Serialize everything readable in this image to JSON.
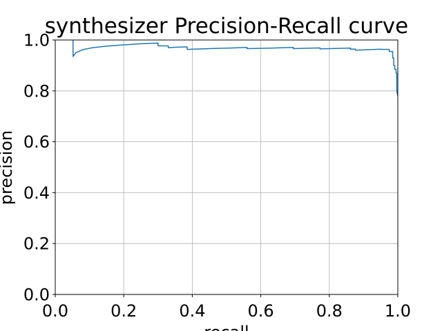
{
  "chart_data": {
    "type": "line",
    "title": "synthesizer Precision-Recall curve",
    "xlabel": "recall",
    "ylabel": "precision",
    "xlim": [
      0.0,
      1.0
    ],
    "ylim": [
      0.0,
      1.0
    ],
    "xticks": [
      "0.0",
      "0.2",
      "0.4",
      "0.6",
      "0.8",
      "1.0"
    ],
    "yticks": [
      "0.0",
      "0.2",
      "0.4",
      "0.6",
      "0.8",
      "1.0"
    ],
    "grid": true,
    "colors": {
      "line": "#1f77b4"
    },
    "series": [
      {
        "x": [
          0.052,
          0.052,
          0.052,
          0.06,
          0.08,
          0.11,
          0.15,
          0.2,
          0.25,
          0.3,
          0.3,
          0.33,
          0.33,
          0.36,
          0.385,
          0.385,
          0.45,
          0.52,
          0.56,
          0.56,
          0.63,
          0.695,
          0.695,
          0.75,
          0.773,
          0.773,
          0.83,
          0.862,
          0.862,
          0.876,
          0.876,
          0.92,
          0.95,
          0.95,
          0.975,
          0.975,
          0.985,
          0.985,
          0.988,
          0.988,
          0.991,
          0.991,
          0.995,
          0.995,
          0.997,
          0.997,
          1.0
        ],
        "y": [
          1.0,
          1.0,
          0.935,
          0.95,
          0.962,
          0.97,
          0.976,
          0.981,
          0.985,
          0.988,
          0.977,
          0.977,
          0.97,
          0.972,
          0.973,
          0.963,
          0.966,
          0.969,
          0.971,
          0.966,
          0.968,
          0.971,
          0.966,
          0.968,
          0.969,
          0.965,
          0.967,
          0.968,
          0.964,
          0.964,
          0.96,
          0.962,
          0.964,
          0.963,
          0.963,
          0.955,
          0.955,
          0.93,
          0.93,
          0.9,
          0.9,
          0.885,
          0.885,
          0.87,
          0.87,
          0.8,
          0.78
        ]
      }
    ]
  }
}
